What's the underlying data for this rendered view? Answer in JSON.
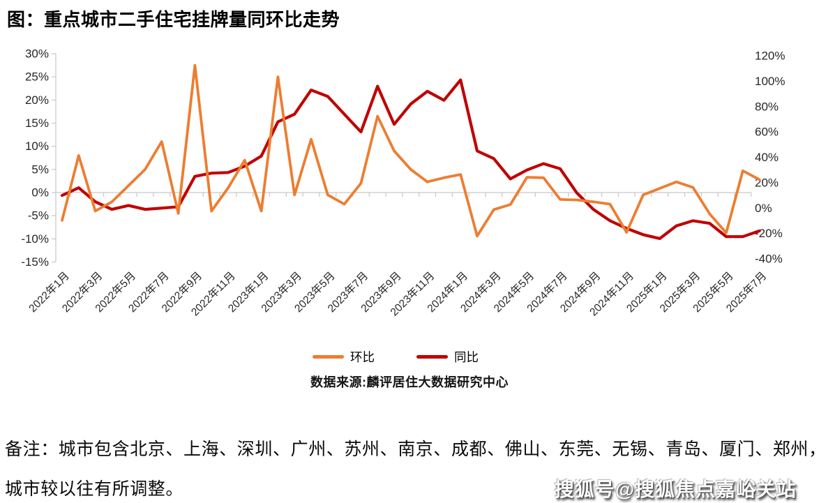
{
  "title": "图：重点城市二手住宅挂牌量同环比走势",
  "legend": {
    "mom": "环比",
    "yoy": "同比"
  },
  "source": "数据来源:麟评居住大数据研究中心",
  "notes": {
    "line1": "备注：城市包含北京、上海、深圳、广州、苏州、南京、成都、佛山、东莞、无锡、青岛、厦门、郑州，",
    "line2": "城市较以往有所调整。"
  },
  "watermark": "搜狐号@搜狐焦点嘉峪关站",
  "colors": {
    "mom_line": "#ED7D31",
    "yoy_line": "#C00000",
    "gridline": "#D2D2D2",
    "axis": "#C6C6C6",
    "tick_text": "#262626"
  },
  "chart_data": {
    "type": "line",
    "title": "重点城市二手住宅挂牌量同环比走势",
    "categories": [
      "2022年1月",
      "2022年2月",
      "2022年3月",
      "2022年4月",
      "2022年5月",
      "2022年6月",
      "2022年7月",
      "2022年8月",
      "2022年9月",
      "2022年10月",
      "2022年11月",
      "2022年12月",
      "2023年1月",
      "2023年2月",
      "2023年3月",
      "2023年4月",
      "2023年5月",
      "2023年6月",
      "2023年7月",
      "2023年8月",
      "2023年9月",
      "2023年10月",
      "2023年11月",
      "2023年12月",
      "2024年1月",
      "2024年2月",
      "2024年3月",
      "2024年4月",
      "2024年5月",
      "2024年6月",
      "2024年7月",
      "2024年8月",
      "2024年9月",
      "2024年10月",
      "2024年11月",
      "2024年12月",
      "2025年1月",
      "2025年2月",
      "2025年3月",
      "2025年4月",
      "2025年5月",
      "2025年6月",
      "2025年7月"
    ],
    "tick_label_interval": 2,
    "series": [
      {
        "name": "环比",
        "axis": "left",
        "color": "#ED7D31",
        "values": [
          -6,
          8,
          -4,
          -2,
          1.5,
          5,
          11,
          -4.5,
          27.5,
          -4,
          1,
          7,
          -4,
          25,
          -0.5,
          11.5,
          -0.5,
          -2.5,
          2,
          16.5,
          9,
          5,
          2.3,
          3.2,
          3.9,
          -9.4,
          -3.7,
          -2.6,
          3.3,
          3.2,
          -1.5,
          -1.6,
          -2,
          -2.5,
          -8.6,
          -0.5,
          0.9,
          2.3,
          1.1,
          -4.6,
          -8.7,
          4.7,
          2.8
        ]
      },
      {
        "name": "同比",
        "axis": "right",
        "color": "#C00000",
        "values": [
          10,
          16,
          5,
          -1,
          2,
          -1,
          0,
          1,
          25,
          27.5,
          28,
          33,
          41,
          68,
          74,
          93,
          88,
          74,
          60,
          96,
          66,
          82,
          92,
          85,
          101,
          45,
          39,
          23,
          30,
          35,
          31,
          12,
          -1,
          -10,
          -16,
          -21,
          -24,
          -14,
          -10,
          -12,
          -22.5,
          -22.5,
          -18
        ]
      }
    ],
    "left_axis": {
      "min": -15,
      "max": 30,
      "step": 5,
      "unit": "%",
      "tick_labels": [
        "30%",
        "25%",
        "20%",
        "15%",
        "10%",
        "5%",
        "0%",
        "-5%",
        "-10%",
        "-15%"
      ]
    },
    "right_axis": {
      "min": -40,
      "max": 120,
      "step": 20,
      "unit": "%",
      "tick_labels": [
        "120%",
        "100%",
        "80%",
        "60%",
        "40%",
        "20%",
        "0%",
        "-20%",
        "-40%"
      ]
    },
    "gridlines": "zero-line-only",
    "legend_position": "bottom-center"
  }
}
